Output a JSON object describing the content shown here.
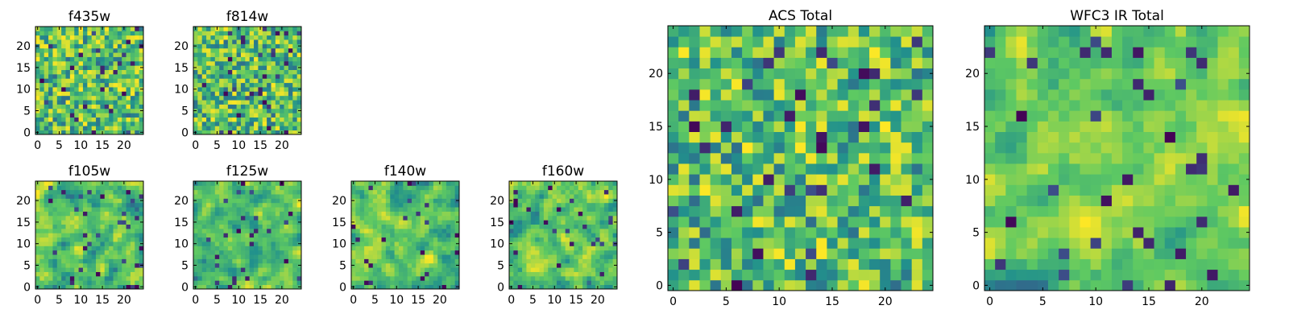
{
  "figure": {
    "colormap": [
      "#440154",
      "#3b528b",
      "#21918c",
      "#5ec962",
      "#fde725"
    ],
    "grid": false
  },
  "chart_data": [
    {
      "type": "heatmap",
      "title": "f435w",
      "size": [
        25,
        25
      ],
      "xlim": [
        0,
        24
      ],
      "ylim": [
        0,
        24
      ],
      "xticks": [
        "0",
        "5",
        "10",
        "15",
        "20"
      ],
      "yticks": [
        "0",
        "5",
        "10",
        "15",
        "20"
      ],
      "value_range": [
        0,
        1
      ],
      "seed": 11,
      "smooth": 0
    },
    {
      "type": "heatmap",
      "title": "f814w",
      "size": [
        25,
        25
      ],
      "xlim": [
        0,
        24
      ],
      "ylim": [
        0,
        24
      ],
      "xticks": [
        "0",
        "5",
        "10",
        "15",
        "20"
      ],
      "yticks": [
        "0",
        "5",
        "10",
        "15",
        "20"
      ],
      "value_range": [
        0,
        1
      ],
      "seed": 23,
      "smooth": 0
    },
    {
      "type": "heatmap",
      "title": "f105w",
      "size": [
        25,
        25
      ],
      "xlim": [
        0,
        24
      ],
      "ylim": [
        0,
        24
      ],
      "xticks": [
        "0",
        "5",
        "10",
        "15",
        "20"
      ],
      "yticks": [
        "0",
        "5",
        "10",
        "15",
        "20"
      ],
      "value_range": [
        0,
        1
      ],
      "seed": 37,
      "smooth": 1
    },
    {
      "type": "heatmap",
      "title": "f125w",
      "size": [
        25,
        25
      ],
      "xlim": [
        0,
        24
      ],
      "ylim": [
        0,
        24
      ],
      "xticks": [
        "0",
        "5",
        "10",
        "15",
        "20"
      ],
      "yticks": [
        "0",
        "5",
        "10",
        "15",
        "20"
      ],
      "value_range": [
        0,
        1
      ],
      "seed": 41,
      "smooth": 1
    },
    {
      "type": "heatmap",
      "title": "f140w",
      "size": [
        25,
        25
      ],
      "xlim": [
        0,
        24
      ],
      "ylim": [
        0,
        24
      ],
      "xticks": [
        "0",
        "5",
        "10",
        "15",
        "20"
      ],
      "yticks": [
        "0",
        "5",
        "10",
        "15",
        "20"
      ],
      "value_range": [
        0,
        1
      ],
      "seed": 53,
      "smooth": 1
    },
    {
      "type": "heatmap",
      "title": "f160w",
      "size": [
        25,
        25
      ],
      "xlim": [
        0,
        24
      ],
      "ylim": [
        0,
        24
      ],
      "xticks": [
        "0",
        "5",
        "10",
        "15",
        "20"
      ],
      "yticks": [
        "0",
        "5",
        "10",
        "15",
        "20"
      ],
      "value_range": [
        0,
        1
      ],
      "seed": 67,
      "smooth": 1
    },
    {
      "type": "heatmap",
      "title": "ACS Total",
      "size": [
        25,
        25
      ],
      "xlim": [
        0,
        24
      ],
      "ylim": [
        0,
        24
      ],
      "xticks": [
        "0",
        "5",
        "10",
        "15",
        "20"
      ],
      "yticks": [
        "0",
        "5",
        "10",
        "15",
        "20"
      ],
      "value_range": [
        0,
        1
      ],
      "seed": 79,
      "smooth": 0
    },
    {
      "type": "heatmap",
      "title": "WFC3 IR Total",
      "size": [
        25,
        25
      ],
      "xlim": [
        0,
        24
      ],
      "ylim": [
        0,
        24
      ],
      "xticks": [
        "0",
        "5",
        "10",
        "15",
        "20"
      ],
      "yticks": [
        "0",
        "5",
        "10",
        "15",
        "20"
      ],
      "value_range": [
        0,
        1
      ],
      "seed": 97,
      "smooth": 1
    }
  ]
}
